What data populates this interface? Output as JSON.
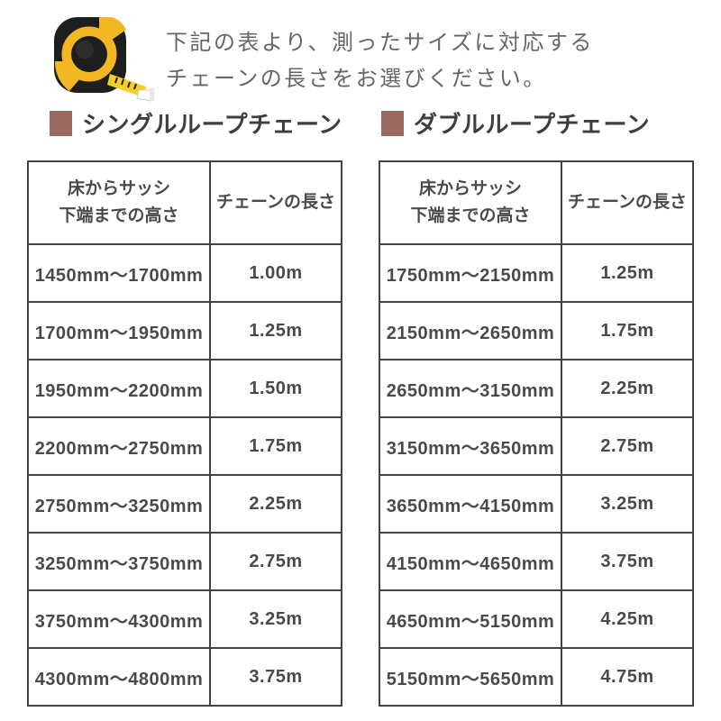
{
  "intro": {
    "line1": "下記の表より、測ったサイズに対応する",
    "line2": "チェーンの長さをお選びください。"
  },
  "colors": {
    "accent_square": "#9a695e",
    "table_border": "#424242",
    "body_text": "#4a4a4a",
    "intro_text": "#666666",
    "tape_yellow": "#f2b722",
    "tape_black": "#1e1e1e"
  },
  "sections": [
    {
      "title": "シングルループチェーン",
      "header_height_line1": "床からサッシ",
      "header_height_line2": "下端までの高さ",
      "header_length": "チェーンの長さ"
    },
    {
      "title": "ダブルループチェーン",
      "header_height_line1": "床からサッシ",
      "header_height_line2": "下端までの高さ",
      "header_length": "チェーンの長さ"
    }
  ],
  "chart_data": [
    {
      "type": "table",
      "title": "シングルループチェーン",
      "columns": [
        "床からサッシ下端までの高さ",
        "チェーンの長さ"
      ],
      "rows": [
        [
          "1450mm〜1700mm",
          "1.00m"
        ],
        [
          "1700mm〜1950mm",
          "1.25m"
        ],
        [
          "1950mm〜2200mm",
          "1.50m"
        ],
        [
          "2200mm〜2750mm",
          "1.75m"
        ],
        [
          "2750mm〜3250mm",
          "2.25m"
        ],
        [
          "3250mm〜3750mm",
          "2.75m"
        ],
        [
          "3750mm〜4300mm",
          "3.25m"
        ],
        [
          "4300mm〜4800mm",
          "3.75m"
        ]
      ]
    },
    {
      "type": "table",
      "title": "ダブルループチェーン",
      "columns": [
        "床からサッシ下端までの高さ",
        "チェーンの長さ"
      ],
      "rows": [
        [
          "1750mm〜2150mm",
          "1.25m"
        ],
        [
          "2150mm〜2650mm",
          "1.75m"
        ],
        [
          "2650mm〜3150mm",
          "2.25m"
        ],
        [
          "3150mm〜3650mm",
          "2.75m"
        ],
        [
          "3650mm〜4150mm",
          "3.25m"
        ],
        [
          "4150mm〜4650mm",
          "3.75m"
        ],
        [
          "4650mm〜5150mm",
          "4.25m"
        ],
        [
          "5150mm〜5650mm",
          "4.75m"
        ]
      ]
    }
  ]
}
